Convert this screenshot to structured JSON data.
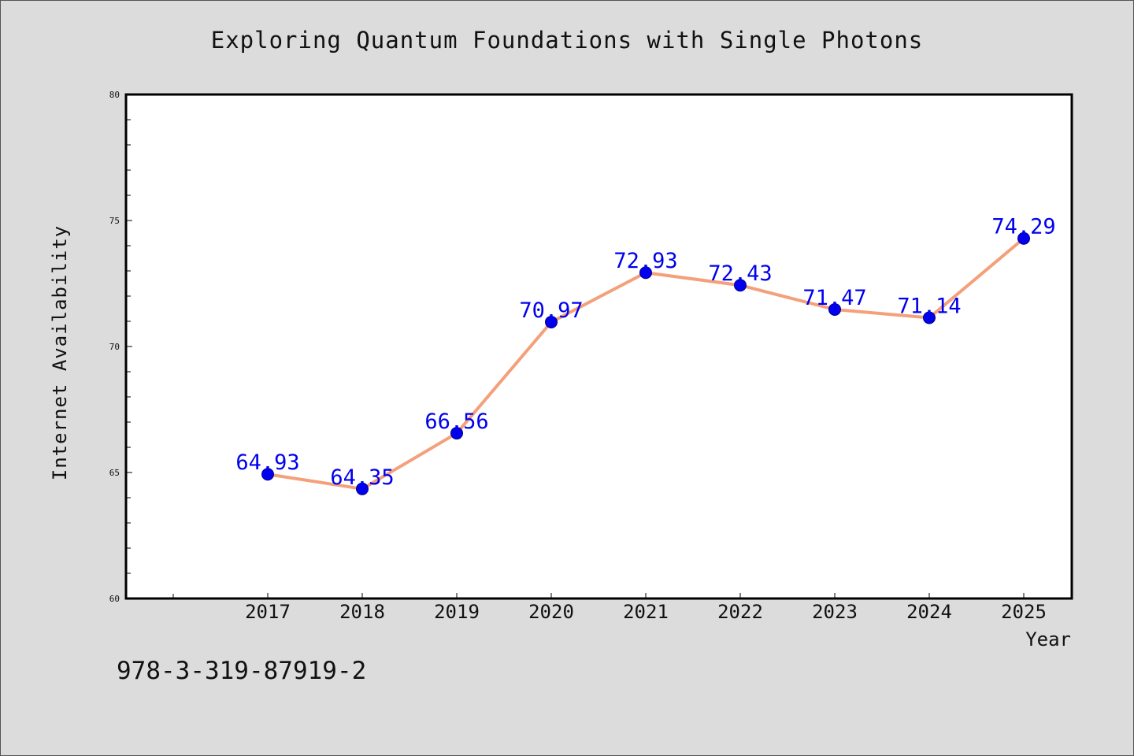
{
  "chart_data": {
    "type": "line",
    "title": "Exploring Quantum Foundations with Single Photons",
    "xlabel": "Year",
    "ylabel": "Internet Availability",
    "categories": [
      "2017",
      "2018",
      "2019",
      "2020",
      "2021",
      "2022",
      "2023",
      "2024",
      "2025"
    ],
    "series": [
      {
        "values": [
          64.93,
          64.35,
          66.56,
          70.97,
          72.93,
          72.43,
          71.47,
          71.14,
          74.29
        ],
        "data_labels": [
          "64.93",
          "64.35",
          "66.56",
          "70.97",
          "72.93",
          "72.43",
          "71.47",
          "71.14",
          "74.29"
        ],
        "line_color": "#f4a07a",
        "marker_color": "#0000ee",
        "label_color": "#0000ee"
      }
    ],
    "ylim": [
      60,
      80
    ],
    "y_ticks": [
      "60",
      "65",
      "70",
      "75",
      "80"
    ],
    "grid": false,
    "legend": "none"
  },
  "footer": {
    "isbn": "978-3-319-87919-2"
  }
}
